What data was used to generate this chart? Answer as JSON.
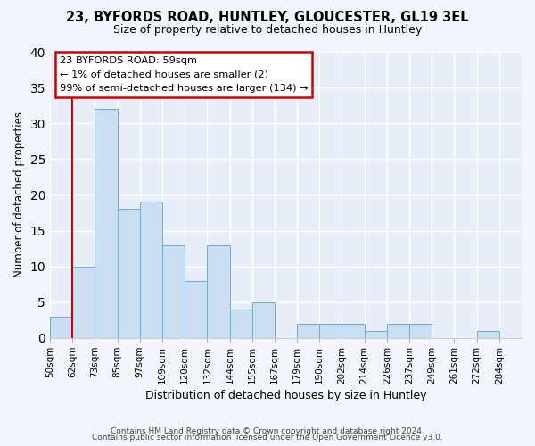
{
  "title": "23, BYFORDS ROAD, HUNTLEY, GLOUCESTER, GL19 3EL",
  "subtitle": "Size of property relative to detached houses in Huntley",
  "xlabel": "Distribution of detached houses by size in Huntley",
  "ylabel": "Number of detached properties",
  "bin_labels": [
    "50sqm",
    "62sqm",
    "73sqm",
    "85sqm",
    "97sqm",
    "109sqm",
    "120sqm",
    "132sqm",
    "144sqm",
    "155sqm",
    "167sqm",
    "179sqm",
    "190sqm",
    "202sqm",
    "214sqm",
    "226sqm",
    "237sqm",
    "249sqm",
    "261sqm",
    "272sqm",
    "284sqm"
  ],
  "bar_values": [
    3,
    10,
    32,
    18,
    19,
    13,
    8,
    13,
    4,
    5,
    0,
    2,
    2,
    2,
    1,
    2,
    2,
    0,
    0,
    1,
    0
  ],
  "bar_color": "#ccdff2",
  "bar_edge_color": "#6aaad4",
  "highlight_color": "#cc0000",
  "annotation_title": "23 BYFORDS ROAD: 59sqm",
  "annotation_line1": "← 1% of detached houses are smaller (2)",
  "annotation_line2": "99% of semi-detached houses are larger (134) →",
  "ylim": [
    0,
    40
  ],
  "yticks": [
    0,
    5,
    10,
    15,
    20,
    25,
    30,
    35,
    40
  ],
  "footer1": "Contains HM Land Registry data © Crown copyright and database right 2024.",
  "footer2": "Contains public sector information licensed under the Open Government Licence v3.0.",
  "bg_color": "#f2f5fb",
  "plot_bg_color": "#e8eef8"
}
